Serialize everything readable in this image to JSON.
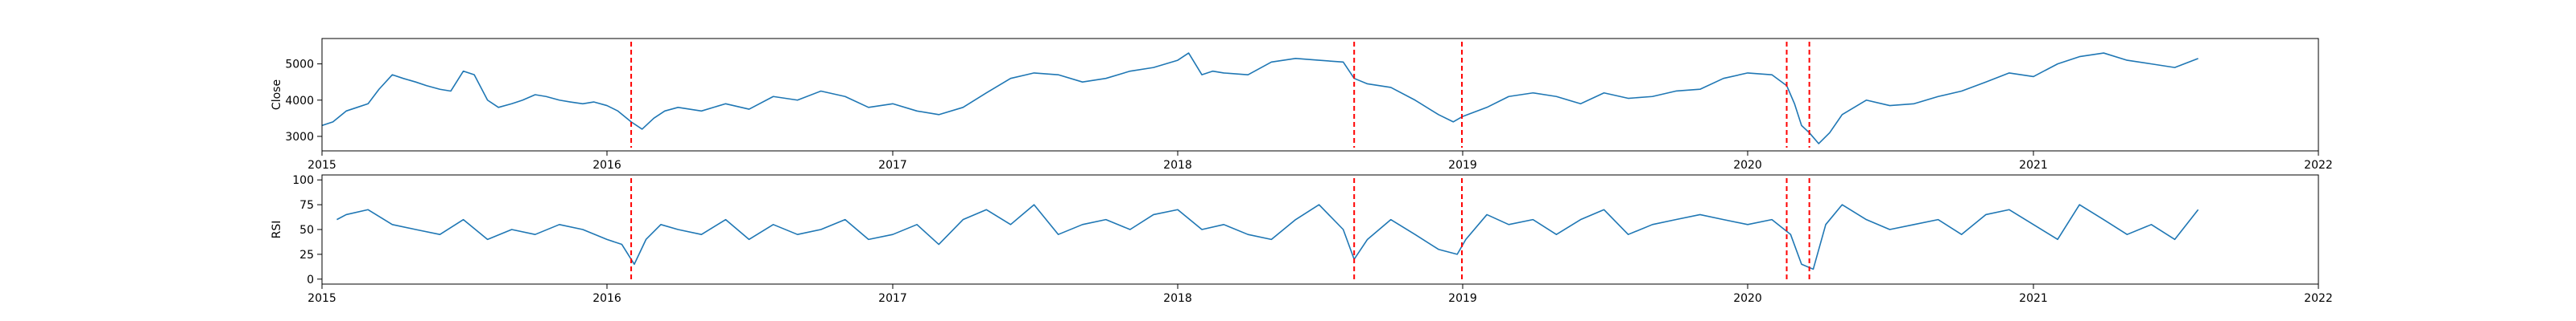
{
  "chart_data": [
    {
      "type": "line",
      "ylabel": "Close",
      "xlim": [
        "2015-01-01",
        "2022-01-01"
      ],
      "ylim": [
        2600,
        5700
      ],
      "x_ticks": [
        "2015",
        "2016",
        "2017",
        "2018",
        "2019",
        "2020",
        "2021",
        "2022"
      ],
      "y_ticks": [
        3000,
        4000,
        5000
      ],
      "line_color": "#1f77b4",
      "grid": false,
      "series": [
        {
          "x": [
            "2015-01-01",
            "2015-01-15",
            "2015-02-01",
            "2015-02-15",
            "2015-03-01",
            "2015-03-15",
            "2015-04-01",
            "2015-04-15",
            "2015-05-01",
            "2015-05-15",
            "2015-06-01",
            "2015-06-15",
            "2015-07-01",
            "2015-07-15",
            "2015-08-01",
            "2015-08-15",
            "2015-09-01",
            "2015-09-15",
            "2015-10-01",
            "2015-10-15",
            "2015-11-01",
            "2015-11-15",
            "2015-12-01",
            "2015-12-15",
            "2016-01-01",
            "2016-01-15",
            "2016-02-01",
            "2016-02-15",
            "2016-03-01",
            "2016-03-15",
            "2016-04-01",
            "2016-05-01",
            "2016-06-01",
            "2016-07-01",
            "2016-08-01",
            "2016-09-01",
            "2016-10-01",
            "2016-11-01",
            "2016-12-01",
            "2017-01-01",
            "2017-02-01",
            "2017-03-01",
            "2017-04-01",
            "2017-05-01",
            "2017-06-01",
            "2017-07-01",
            "2017-08-01",
            "2017-09-01",
            "2017-10-01",
            "2017-11-01",
            "2017-12-01",
            "2018-01-01",
            "2018-01-15",
            "2018-02-01",
            "2018-02-15",
            "2018-03-01",
            "2018-04-01",
            "2018-05-01",
            "2018-06-01",
            "2018-07-01",
            "2018-08-01",
            "2018-08-15",
            "2018-09-01",
            "2018-10-01",
            "2018-11-01",
            "2018-12-01",
            "2018-12-20",
            "2019-01-01",
            "2019-02-01",
            "2019-03-01",
            "2019-04-01",
            "2019-05-01",
            "2019-06-01",
            "2019-07-01",
            "2019-08-01",
            "2019-09-01",
            "2019-10-01",
            "2019-11-01",
            "2019-12-01",
            "2020-01-01",
            "2020-02-01",
            "2020-02-20",
            "2020-03-01",
            "2020-03-10",
            "2020-03-20",
            "2020-04-01",
            "2020-04-15",
            "2020-05-01",
            "2020-06-01",
            "2020-07-01",
            "2020-08-01",
            "2020-09-01",
            "2020-10-01",
            "2020-11-01",
            "2020-12-01",
            "2021-01-01",
            "2021-02-01",
            "2021-03-01",
            "2021-04-01",
            "2021-05-01",
            "2021-06-01",
            "2021-07-01",
            "2021-07-31"
          ],
          "values": [
            3300,
            3400,
            3700,
            3800,
            3900,
            4300,
            4700,
            4600,
            4500,
            4400,
            4300,
            4250,
            4800,
            4700,
            4000,
            3800,
            3900,
            4000,
            4150,
            4100,
            4000,
            3950,
            3900,
            3950,
            3850,
            3700,
            3400,
            3200,
            3500,
            3700,
            3800,
            3700,
            3900,
            3750,
            4100,
            4000,
            4250,
            4100,
            3800,
            3900,
            3700,
            3600,
            3800,
            4200,
            4600,
            4750,
            4700,
            4500,
            4600,
            4800,
            4900,
            5100,
            5300,
            4700,
            4800,
            4750,
            4700,
            5050,
            5150,
            5100,
            5050,
            4600,
            4450,
            4350,
            4000,
            3600,
            3400,
            3550,
            3800,
            4100,
            4200,
            4100,
            3900,
            4200,
            4050,
            4100,
            4250,
            4300,
            4600,
            4750,
            4700,
            4400,
            3900,
            3300,
            3100,
            2800,
            3100,
            3600,
            4000,
            3850,
            3900,
            4100,
            4250,
            4500,
            4750,
            4650,
            5000,
            5200,
            5300,
            5100,
            5000,
            4900,
            5150
          ]
        }
      ],
      "annotations": [
        "2016-02-01",
        "2018-08-15",
        "2018-12-31",
        "2020-02-20",
        "2020-03-20"
      ],
      "annotation_color": "#ff0000"
    },
    {
      "type": "line",
      "ylabel": "RSI",
      "xlim": [
        "2015-01-01",
        "2022-01-01"
      ],
      "ylim": [
        -5,
        105
      ],
      "x_ticks": [
        "2015",
        "2016",
        "2017",
        "2018",
        "2019",
        "2020",
        "2021",
        "2022"
      ],
      "y_ticks": [
        0,
        25,
        50,
        75,
        100
      ],
      "line_color": "#1f77b4",
      "grid": false,
      "series": [
        {
          "x": [
            "2015-01-20",
            "2015-02-01",
            "2015-03-01",
            "2015-04-01",
            "2015-05-01",
            "2015-06-01",
            "2015-07-01",
            "2015-08-01",
            "2015-09-01",
            "2015-10-01",
            "2015-11-01",
            "2015-12-01",
            "2016-01-01",
            "2016-01-20",
            "2016-02-05",
            "2016-02-20",
            "2016-03-10",
            "2016-04-01",
            "2016-05-01",
            "2016-06-01",
            "2016-07-01",
            "2016-08-01",
            "2016-09-01",
            "2016-10-01",
            "2016-11-01",
            "2016-12-01",
            "2017-01-01",
            "2017-02-01",
            "2017-03-01",
            "2017-04-01",
            "2017-05-01",
            "2017-06-01",
            "2017-07-01",
            "2017-08-01",
            "2017-09-01",
            "2017-10-01",
            "2017-11-01",
            "2017-12-01",
            "2018-01-01",
            "2018-02-01",
            "2018-03-01",
            "2018-04-01",
            "2018-05-01",
            "2018-06-01",
            "2018-07-01",
            "2018-08-01",
            "2018-08-15",
            "2018-09-01",
            "2018-10-01",
            "2018-11-01",
            "2018-12-01",
            "2018-12-25",
            "2019-01-05",
            "2019-02-01",
            "2019-03-01",
            "2019-04-01",
            "2019-05-01",
            "2019-06-01",
            "2019-07-01",
            "2019-08-01",
            "2019-09-01",
            "2019-10-01",
            "2019-11-01",
            "2019-12-01",
            "2020-01-01",
            "2020-02-01",
            "2020-02-25",
            "2020-03-10",
            "2020-03-25",
            "2020-04-10",
            "2020-05-01",
            "2020-06-01",
            "2020-07-01",
            "2020-08-01",
            "2020-09-01",
            "2020-10-01",
            "2020-11-01",
            "2020-12-01",
            "2021-01-01",
            "2021-02-01",
            "2021-03-01",
            "2021-04-01",
            "2021-05-01",
            "2021-06-01",
            "2021-07-01",
            "2021-07-31"
          ],
          "values": [
            60,
            65,
            70,
            55,
            50,
            45,
            60,
            40,
            50,
            45,
            55,
            50,
            40,
            35,
            15,
            40,
            55,
            50,
            45,
            60,
            40,
            55,
            45,
            50,
            60,
            40,
            45,
            55,
            35,
            60,
            70,
            55,
            75,
            45,
            55,
            60,
            50,
            65,
            70,
            50,
            55,
            45,
            40,
            60,
            75,
            50,
            20,
            40,
            60,
            45,
            30,
            25,
            40,
            65,
            55,
            60,
            45,
            60,
            70,
            45,
            55,
            60,
            65,
            60,
            55,
            60,
            45,
            15,
            10,
            55,
            75,
            60,
            50,
            55,
            60,
            45,
            65,
            70,
            55,
            40,
            75,
            60,
            45,
            55,
            40,
            70
          ]
        }
      ],
      "annotations": [
        "2016-02-01",
        "2018-08-15",
        "2018-12-31",
        "2020-02-20",
        "2020-03-20"
      ],
      "annotation_color": "#ff0000"
    }
  ]
}
